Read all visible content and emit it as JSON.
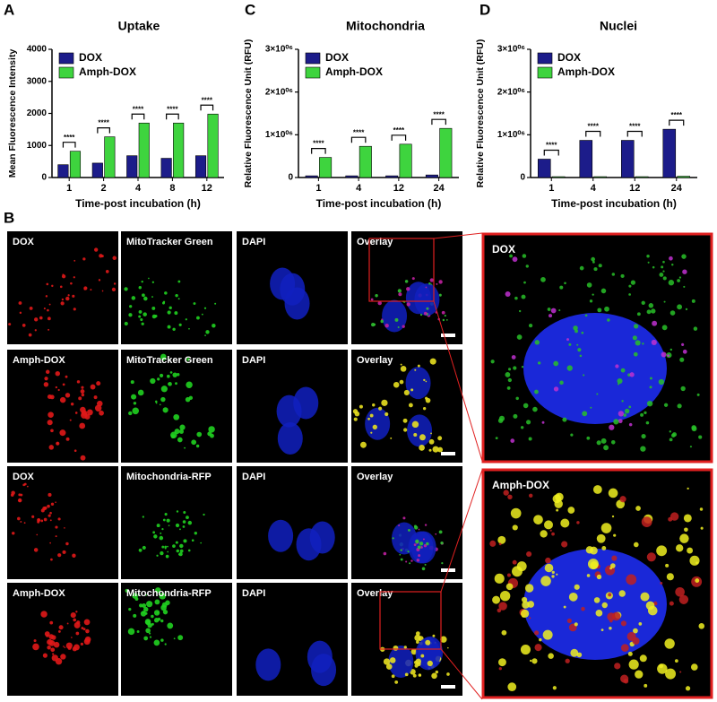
{
  "chart_data": [
    {
      "type": "bar",
      "panel": "A",
      "title": "Uptake",
      "ylabel": "Mean Fluorescence Intensity",
      "xlabel": "Time-post incubation (h)",
      "categories": [
        "1",
        "2",
        "4",
        "8",
        "12"
      ],
      "series": [
        {
          "name": "DOX",
          "color": "#1c1c8a",
          "values": [
            400,
            450,
            680,
            600,
            680
          ]
        },
        {
          "name": "Amph-DOX",
          "color": "#3ed43e",
          "values": [
            820,
            1270,
            1700,
            1700,
            1980
          ]
        }
      ],
      "significance": [
        "****",
        "****",
        "****",
        "****",
        "****"
      ],
      "ylim": [
        0,
        4000
      ],
      "yticks": [
        0,
        1000,
        2000,
        3000,
        4000
      ],
      "legend": "upper-left"
    },
    {
      "type": "bar",
      "panel": "C",
      "title": "Mitochondria",
      "ylabel": "Relative Fluorescence Unit (RFU)",
      "xlabel": "Time-post incubation (h)",
      "categories": [
        "1",
        "4",
        "12",
        "24"
      ],
      "series": [
        {
          "name": "DOX",
          "color": "#1c1c8a",
          "values": [
            40000,
            40000,
            40000,
            60000
          ]
        },
        {
          "name": "Amph-DOX",
          "color": "#3ed43e",
          "values": [
            470000,
            730000,
            780000,
            1150000
          ]
        }
      ],
      "significance": [
        "****",
        "****",
        "****",
        "****"
      ],
      "ylim": [
        0,
        3000000
      ],
      "yticks": [
        0,
        {
          "value": 1000000,
          "label": "1×10⁰⁶"
        },
        {
          "value": 2000000,
          "label": "2×10⁰⁶"
        },
        {
          "value": 3000000,
          "label": "3×10⁰⁶"
        }
      ],
      "legend": "upper-left"
    },
    {
      "type": "bar",
      "panel": "D",
      "title": "Nuclei",
      "ylabel": "Relative Fluorescence Unit (RFU)",
      "xlabel": "Time-post incubation (h)",
      "categories": [
        "1",
        "4",
        "12",
        "24"
      ],
      "series": [
        {
          "name": "DOX",
          "color": "#1c1c8a",
          "values": [
            430000,
            870000,
            870000,
            1130000
          ]
        },
        {
          "name": "Amph-DOX",
          "color": "#3ed43e",
          "values": [
            20000,
            20000,
            20000,
            30000
          ]
        }
      ],
      "significance": [
        "****",
        "****",
        "****",
        "****"
      ],
      "ylim": [
        0,
        3000000
      ],
      "yticks": [
        0,
        {
          "value": 1000000,
          "label": "1×10⁰⁶"
        },
        {
          "value": 2000000,
          "label": "2×10⁰⁶"
        },
        {
          "value": 3000000,
          "label": "3×10⁰⁶"
        }
      ],
      "legend": "upper-left"
    }
  ],
  "figure": {
    "panel": "B",
    "grid": [
      [
        "DOX",
        "MitoTracker Green",
        "DAPI",
        "Overlay"
      ],
      [
        "Amph-DOX",
        "MitoTracker Green",
        "DAPI",
        "Overlay"
      ],
      [
        "DOX",
        "Mitochondria-RFP",
        "DAPI",
        "Overlay"
      ],
      [
        "Amph-DOX",
        "Mitochondria-RFP",
        "DAPI",
        "Overlay"
      ]
    ],
    "zoom": [
      "DOX",
      "Amph-DOX"
    ]
  }
}
